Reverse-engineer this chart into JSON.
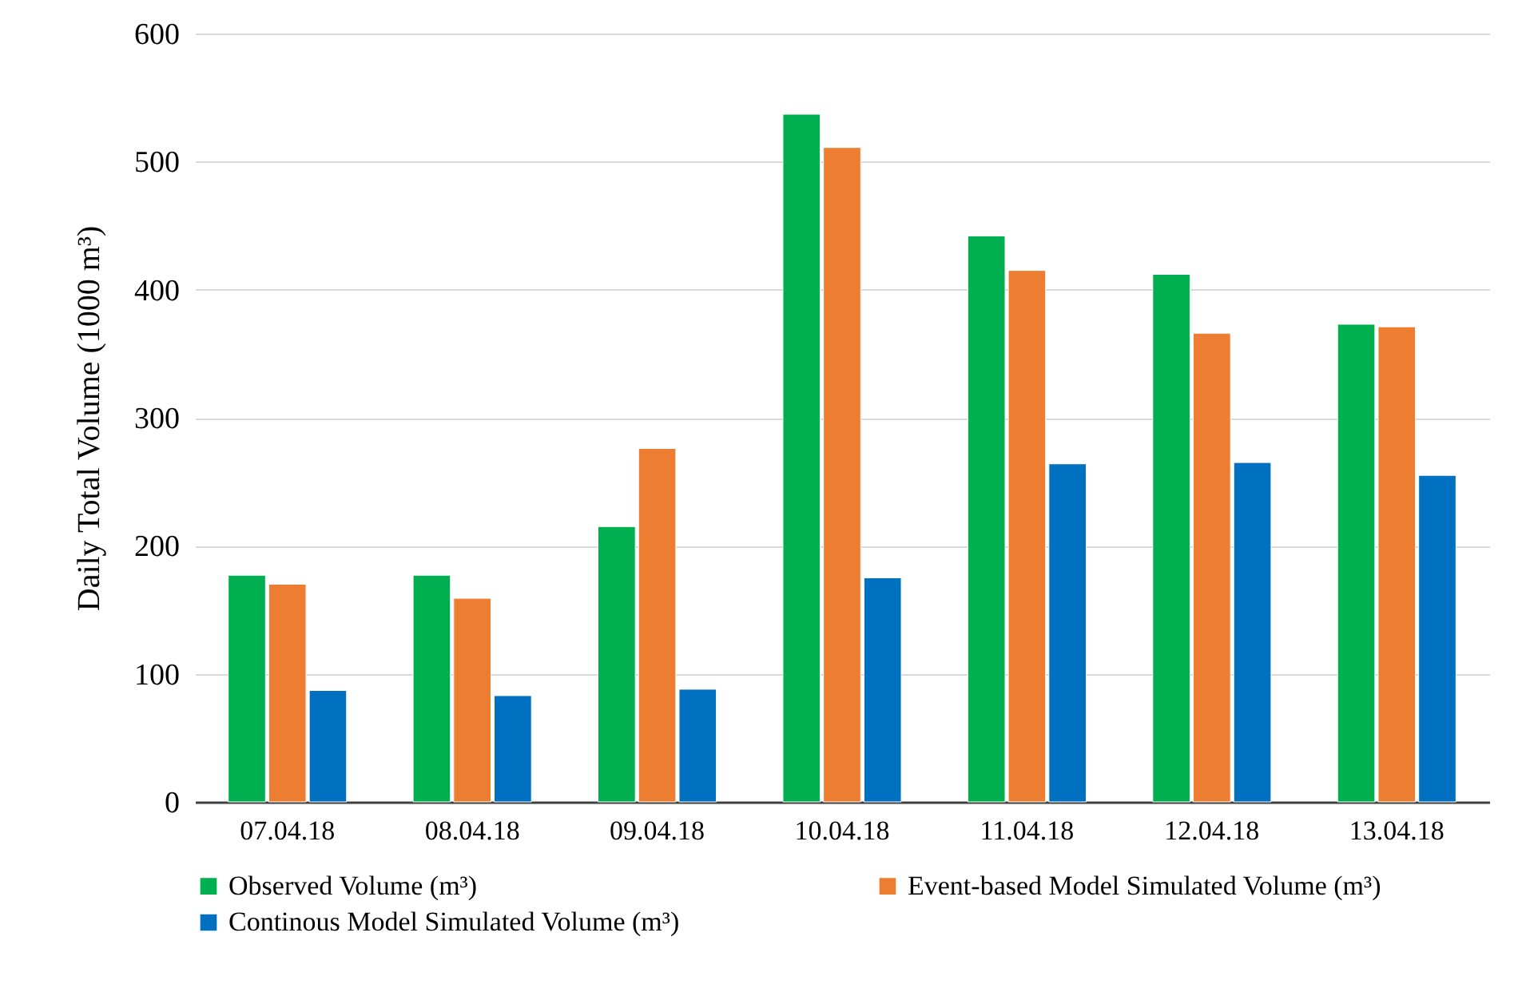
{
  "chart_data": {
    "type": "bar",
    "ylabel": "Daily Total Volume (1000 m³)",
    "categories": [
      "07.04.18",
      "08.04.18",
      "09.04.18",
      "10.04.18",
      "11.04.18",
      "12.04.18",
      "13.04.18"
    ],
    "series": [
      {
        "name": "Observed  Volume (m³)",
        "color": "#00b050",
        "values": [
          177,
          177,
          215,
          537,
          442,
          412,
          373
        ]
      },
      {
        "name": "Event-based Model Simulated Volume (m³)",
        "color": "#ed7d31",
        "values": [
          170,
          159,
          276,
          511,
          415,
          366,
          371
        ]
      },
      {
        "name": "Continous Model Simulated Volume (m³)",
        "color": "#0070c0",
        "values": [
          87,
          83,
          88,
          175,
          264,
          265,
          255
        ]
      }
    ],
    "ylim": [
      0,
      600
    ],
    "yticks": [
      0,
      100,
      200,
      300,
      400,
      500,
      600
    ],
    "grid": "y",
    "legend": "bottom"
  }
}
